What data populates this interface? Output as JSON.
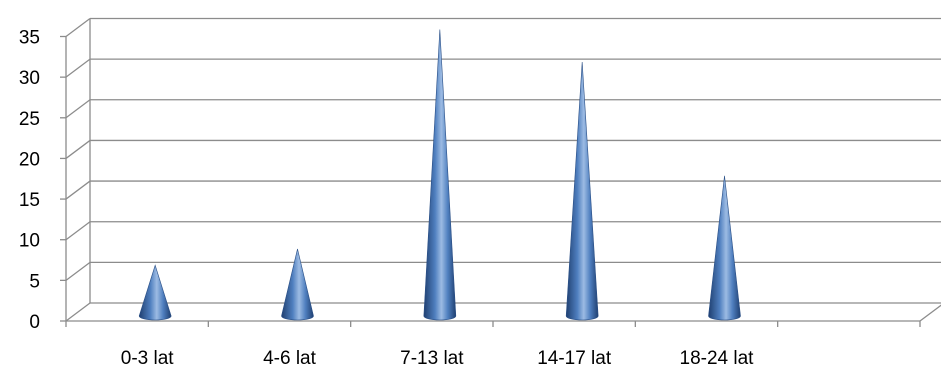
{
  "chart_data": {
    "type": "bar",
    "mark_shape": "3d-cone",
    "categories": [
      "0-3 lat",
      "4-6 lat",
      "7-13 lat",
      "14-17 lat",
      "18-24 lat",
      ""
    ],
    "values": [
      6,
      8,
      35,
      31,
      17,
      null
    ],
    "title": "",
    "xlabel": "",
    "ylabel": "",
    "ylim": [
      0,
      35
    ],
    "yticks": [
      0,
      5,
      10,
      15,
      20,
      25,
      30,
      35
    ],
    "grid": true,
    "legend": "none",
    "colors": {
      "cone_dark": "#1f3f70",
      "cone_mid": "#4f7fbf",
      "cone_light": "#9cbbe3",
      "gridline": "#8c8c8c"
    }
  }
}
